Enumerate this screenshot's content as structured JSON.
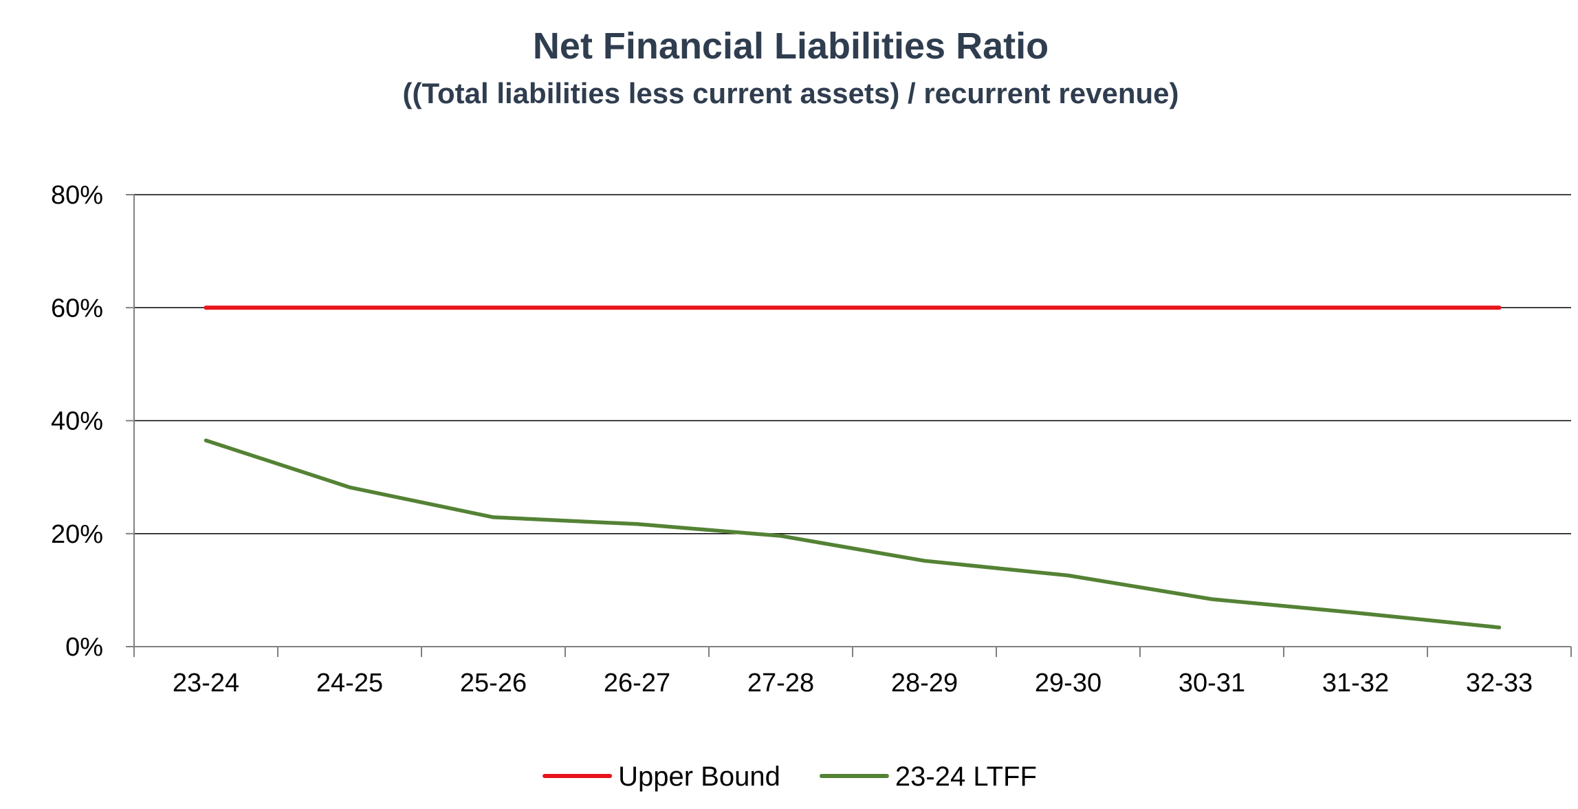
{
  "chart_data": {
    "type": "line",
    "title": "Net Financial Liabilities Ratio",
    "subtitle": "((Total liabilities less current assets) / recurrent revenue)",
    "xlabel": "",
    "ylabel": "",
    "categories": [
      "23-24",
      "24-25",
      "25-26",
      "26-27",
      "27-28",
      "28-29",
      "29-30",
      "30-31",
      "31-32",
      "32-33"
    ],
    "ylim": [
      0,
      80
    ],
    "yticks": [
      0,
      20,
      40,
      60,
      80
    ],
    "ytick_labels": [
      "0%",
      "20%",
      "40%",
      "60%",
      "80%"
    ],
    "grid": true,
    "legend_position": "bottom",
    "series": [
      {
        "name": "Upper Bound",
        "color": "#e8141c",
        "values": [
          60,
          60,
          60,
          60,
          60,
          60,
          60,
          60,
          60,
          60
        ]
      },
      {
        "name": "23-24 LTFF",
        "color": "#548235",
        "values": [
          36.5,
          28.2,
          22.9,
          21.7,
          19.6,
          15.2,
          12.6,
          8.4,
          6.0,
          3.4
        ]
      }
    ]
  }
}
